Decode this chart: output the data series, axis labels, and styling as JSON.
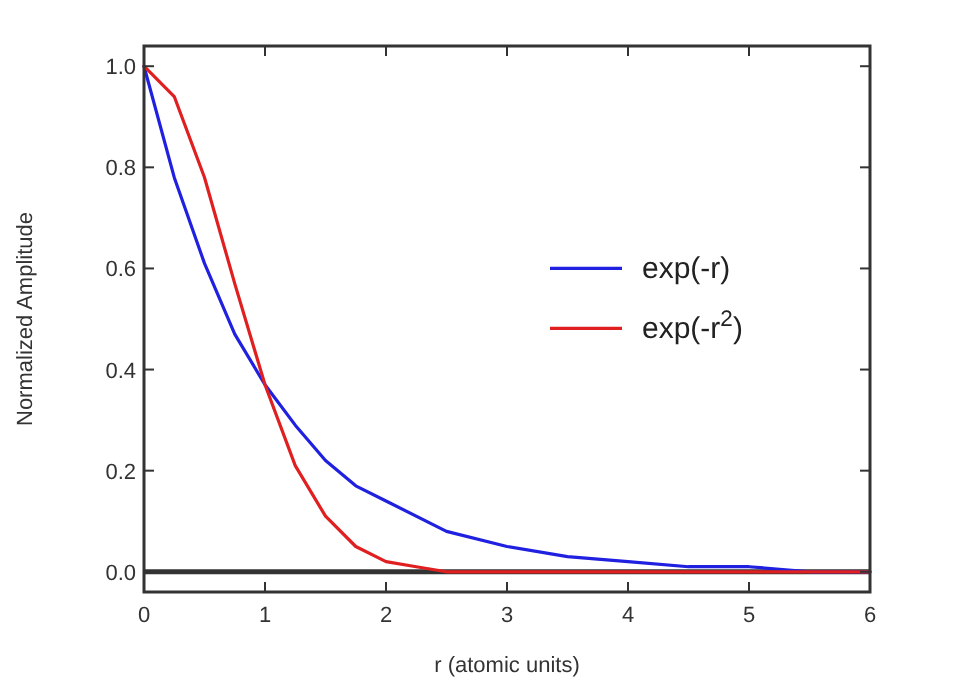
{
  "chart_data": {
    "type": "line",
    "xlabel": "r (atomic units)",
    "ylabel": "Normalized Amplitude",
    "xlim": [
      0,
      6
    ],
    "xticks": [
      0,
      1,
      2,
      3,
      4,
      5,
      6
    ],
    "ylim": [
      -0.04,
      1.04
    ],
    "yticks": [
      {
        "value": 0,
        "label": "0.0"
      },
      {
        "value": 0.2,
        "label": "0.2"
      },
      {
        "value": 0.4,
        "label": "0.4"
      },
      {
        "value": 0.6,
        "label": "0.6"
      },
      {
        "value": 0.8,
        "label": "0.8"
      },
      {
        "value": 1,
        "label": "1.0"
      }
    ],
    "series": [
      {
        "name": "exp(-r)",
        "color": "#2020e0",
        "x": [
          0,
          0.25,
          0.5,
          0.75,
          1,
          1.25,
          1.5,
          1.75,
          2,
          2.5,
          3,
          3.5,
          4,
          4.5,
          5,
          5.5,
          6
        ],
        "values": [
          1,
          0.78,
          0.61,
          0.47,
          0.37,
          0.29,
          0.22,
          0.17,
          0.14,
          0.08,
          0.05,
          0.03,
          0.02,
          0.01,
          0.01,
          0,
          0
        ]
      },
      {
        "name": "exp(-r$^{2}$)",
        "color": "#e02020",
        "x": [
          0,
          0.25,
          0.5,
          0.75,
          1,
          1.25,
          1.5,
          1.75,
          2,
          2.25,
          2.5,
          3,
          4,
          5,
          6
        ],
        "values": [
          1,
          0.94,
          0.78,
          0.57,
          0.37,
          0.21,
          0.11,
          0.05,
          0.02,
          0.01,
          0,
          0,
          0,
          0,
          0
        ]
      }
    ],
    "ref_lines": [
      {
        "axis": "y",
        "value": 0,
        "color": "#333333"
      }
    ],
    "legend": "right",
    "grid": false,
    "marker": "none",
    "line_style": "solid"
  }
}
